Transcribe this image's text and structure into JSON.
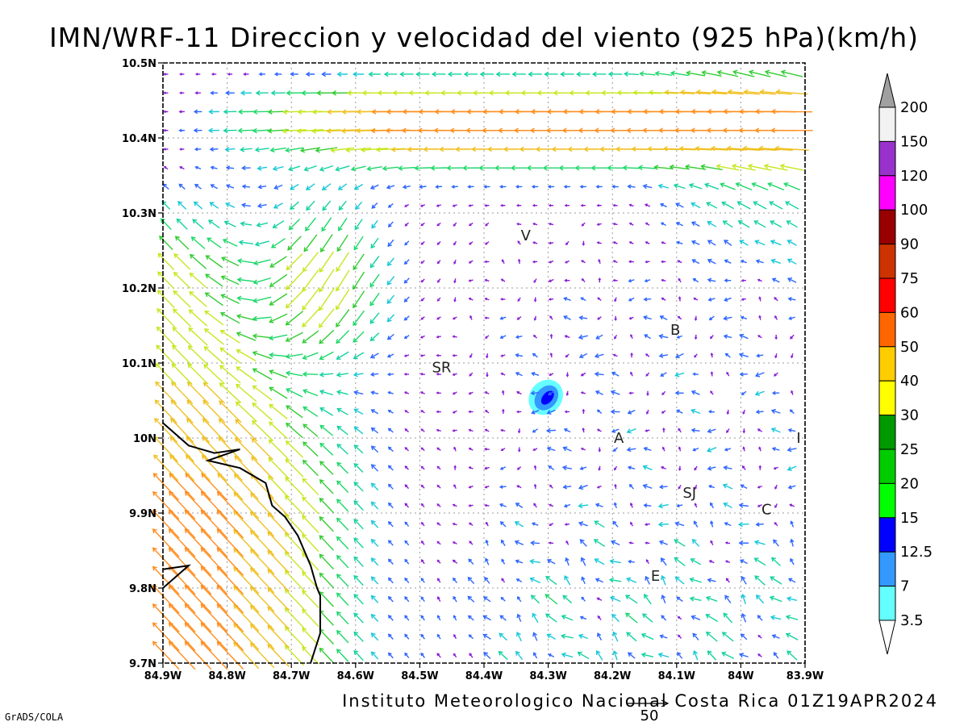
{
  "title": "IMN/WRF-11 Direccion y velocidad del viento (925 hPa)(km/h)",
  "footer": "Instituto Meteorologico Nacional Costa Rica 01Z19APR2024",
  "credit": "GrADS/COLA",
  "reference_vector": {
    "label": "50",
    "speed": 50
  },
  "map": {
    "lon_range": [
      -84.9,
      -83.9
    ],
    "lat_range": [
      9.7,
      10.5
    ],
    "grid": "dotted",
    "x_ticks": [
      "84.9W",
      "84.8W",
      "84.7W",
      "84.6W",
      "84.5W",
      "84.4W",
      "84.3W",
      "84.2W",
      "84.1W",
      "84W",
      "83.9W"
    ],
    "y_ticks": [
      "9.7N",
      "9.8N",
      "9.9N",
      "10N",
      "10.1N",
      "10.2N",
      "10.3N",
      "10.4N",
      "10.5N"
    ],
    "cities": [
      {
        "label": "V",
        "lon": -84.335,
        "lat": 10.27
      },
      {
        "label": "B",
        "lon": -84.102,
        "lat": 10.144
      },
      {
        "label": "SR",
        "lon": -84.466,
        "lat": 10.094
      },
      {
        "label": "A",
        "lon": -84.19,
        "lat": 10.0
      },
      {
        "label": "I",
        "lon": -83.91,
        "lat": 10.0
      },
      {
        "label": "SJ",
        "lon": -84.08,
        "lat": 9.927
      },
      {
        "label": "C",
        "lon": -83.96,
        "lat": 9.905
      },
      {
        "label": "E",
        "lon": -84.133,
        "lat": 9.816
      }
    ],
    "coastline": [
      [
        -84.9,
        10.02
      ],
      [
        -84.86,
        9.99
      ],
      [
        -84.82,
        9.98
      ],
      [
        -84.78,
        9.985
      ],
      [
        -84.83,
        9.97
      ],
      [
        -84.78,
        9.96
      ],
      [
        -84.74,
        9.94
      ],
      [
        -84.73,
        9.91
      ],
      [
        -84.71,
        9.895
      ],
      [
        -84.69,
        9.87
      ],
      [
        -84.67,
        9.83
      ],
      [
        -84.66,
        9.8
      ],
      [
        -84.655,
        9.79
      ],
      [
        -84.655,
        9.74
      ],
      [
        -84.67,
        9.7
      ]
    ],
    "coastline2": [
      [
        -84.9,
        9.8
      ],
      [
        -84.86,
        9.83
      ],
      [
        -84.9,
        9.825
      ]
    ],
    "speed_blob": {
      "lon": -84.3,
      "lat": 10.05
    }
  },
  "legend": {
    "labels": [
      "200",
      "150",
      "120",
      "100",
      "90",
      "75",
      "60",
      "50",
      "40",
      "30",
      "25",
      "20",
      "15",
      "12.5",
      "7",
      "3.5"
    ],
    "colors": [
      "#a0a0a0",
      "#f2f2f2",
      "#9932cc",
      "#ff00ff",
      "#990000",
      "#cc3300",
      "#ff0000",
      "#ff6600",
      "#ffcc00",
      "#ffff00",
      "#009900",
      "#00cc00",
      "#00ff00",
      "#0000ff",
      "#3399ff",
      "#66ffff",
      "#ffffff"
    ]
  }
}
